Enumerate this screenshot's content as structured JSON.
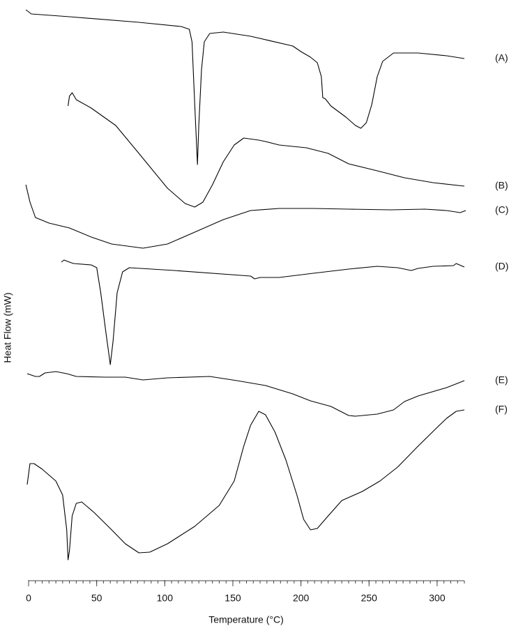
{
  "chart_data": {
    "type": "line",
    "xlabel": "Temperature (°C)",
    "ylabel": "Heat Flow (mW)",
    "xlim": [
      0,
      320
    ],
    "xticks": [
      0,
      50,
      100,
      150,
      200,
      250,
      300
    ],
    "xminorticks": [
      0,
      5,
      10,
      15,
      20,
      25,
      30,
      35,
      40,
      45,
      50,
      55,
      60,
      65,
      70,
      75,
      80,
      85,
      90,
      95,
      100,
      105,
      110,
      115,
      120,
      125,
      130,
      135,
      140,
      145,
      150,
      155,
      160,
      165,
      170,
      175,
      180,
      185,
      190,
      195,
      200,
      205,
      210,
      215,
      220,
      225,
      230,
      235,
      240,
      245,
      250,
      255,
      260,
      265,
      270,
      275,
      280,
      285,
      290,
      295,
      300,
      305,
      310,
      315,
      320
    ],
    "ylim": [
      0,
      820
    ],
    "series": [
      {
        "name": "(A)",
        "color": "#000000",
        "x": [
          -2,
          2,
          30,
          81,
          112,
          118,
          120,
          122,
          124,
          125,
          127,
          129,
          133,
          143,
          163,
          194,
          200,
          207,
          212,
          215,
          216,
          218,
          222,
          233,
          240,
          244,
          248,
          252,
          256,
          260,
          268,
          286,
          307,
          320
        ],
        "values": [
          816,
          810,
          806,
          798,
          792,
          788,
          770,
          680,
          594,
          650,
          730,
          770,
          782,
          784,
          778,
          764,
          756,
          748,
          740,
          720,
          690,
          688,
          678,
          662,
          650,
          646,
          654,
          680,
          720,
          742,
          754,
          754,
          750,
          746
        ]
      },
      {
        "name": "(B)",
        "color": "#000000",
        "x": [
          29,
          30,
          32,
          35,
          46,
          64,
          81,
          102,
          115,
          122,
          128,
          135,
          143,
          151,
          158,
          169,
          174,
          184,
          204,
          220,
          235,
          256,
          276,
          297,
          320
        ],
        "values": [
          678,
          692,
          697,
          687,
          675,
          650,
          610,
          560,
          538,
          533,
          540,
          565,
          598,
          622,
          632,
          629,
          627,
          622,
          618,
          610,
          595,
          585,
          575,
          568,
          563
        ]
      },
      {
        "name": "(C)",
        "color": "#000000",
        "x": [
          -2,
          1,
          5,
          15,
          30,
          46,
          61,
          84,
          102,
          122,
          143,
          163,
          184,
          209,
          235,
          266,
          291,
          307,
          317,
          321
        ],
        "values": [
          565,
          540,
          518,
          510,
          503,
          490,
          480,
          474,
          480,
          497,
          515,
          528,
          531,
          531,
          530,
          529,
          530,
          528,
          525,
          528
        ]
      },
      {
        "name": "(D)",
        "color": "#000000",
        "x": [
          24,
          26,
          30,
          33,
          46,
          50,
          53,
          57,
          60,
          62,
          65,
          69,
          74,
          107,
          163,
          166,
          170,
          184,
          209,
          235,
          256,
          271,
          281,
          286,
          297,
          312,
          314,
          320
        ],
        "values": [
          454,
          457,
          454,
          452,
          450,
          446,
          410,
          350,
          307,
          340,
          410,
          440,
          446,
          442,
          434,
          430,
          432,
          432,
          438,
          444,
          448,
          446,
          442,
          445,
          448,
          449,
          452,
          447
        ]
      },
      {
        "name": "(E)",
        "color": "#000000",
        "x": [
          -1,
          5,
          8,
          12,
          20,
          28,
          35,
          56,
          71,
          84,
          102,
          133,
          153,
          174,
          194,
          207,
          222,
          235,
          240,
          256,
          268,
          276,
          286,
          307,
          320
        ],
        "values": [
          294,
          290,
          290,
          295,
          297,
          294,
          290,
          289,
          289,
          285,
          288,
          290,
          284,
          277,
          265,
          255,
          247,
          234,
          233,
          236,
          242,
          254,
          262,
          274,
          284
        ]
      },
      {
        "name": "(F)",
        "color": "#000000",
        "x": [
          -1,
          1,
          4,
          10,
          20,
          25,
          28,
          29,
          30,
          32,
          35,
          39,
          48,
          61,
          71,
          81,
          89,
          102,
          122,
          140,
          151,
          158,
          163,
          169,
          174,
          181,
          189,
          197,
          202,
          207,
          212,
          220,
          230,
          245,
          258,
          271,
          286,
          299,
          307,
          314,
          320
        ],
        "values": [
          135,
          165,
          165,
          157,
          140,
          120,
          70,
          27,
          40,
          90,
          108,
          110,
          95,
          70,
          50,
          37,
          38,
          50,
          75,
          105,
          140,
          190,
          220,
          240,
          235,
          210,
          170,
          120,
          85,
          70,
          72,
          90,
          112,
          125,
          140,
          160,
          190,
          215,
          230,
          240,
          242
        ]
      }
    ]
  }
}
